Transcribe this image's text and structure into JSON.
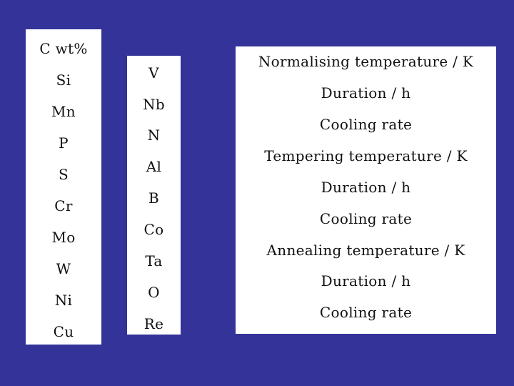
{
  "composition_column_1": {
    "items": [
      "C wt%",
      "Si",
      "Mn",
      "P",
      "S",
      "Cr",
      "Mo",
      "W",
      "Ni",
      "Cu"
    ]
  },
  "composition_column_2": {
    "items": [
      "V",
      "Nb",
      "N",
      "Al",
      "B",
      "Co",
      "Ta",
      "O",
      "Re"
    ]
  },
  "heat_treatment": {
    "items": [
      "Normalising temperature / K",
      "Duration / h",
      "Cooling rate",
      "Tempering temperature / K",
      "Duration / h",
      "Cooling rate",
      "Annealing temperature / K",
      "Duration / h",
      "Cooling rate"
    ]
  },
  "colors": {
    "background": "#333399",
    "panel": "#ffffff",
    "text": "#111111"
  }
}
